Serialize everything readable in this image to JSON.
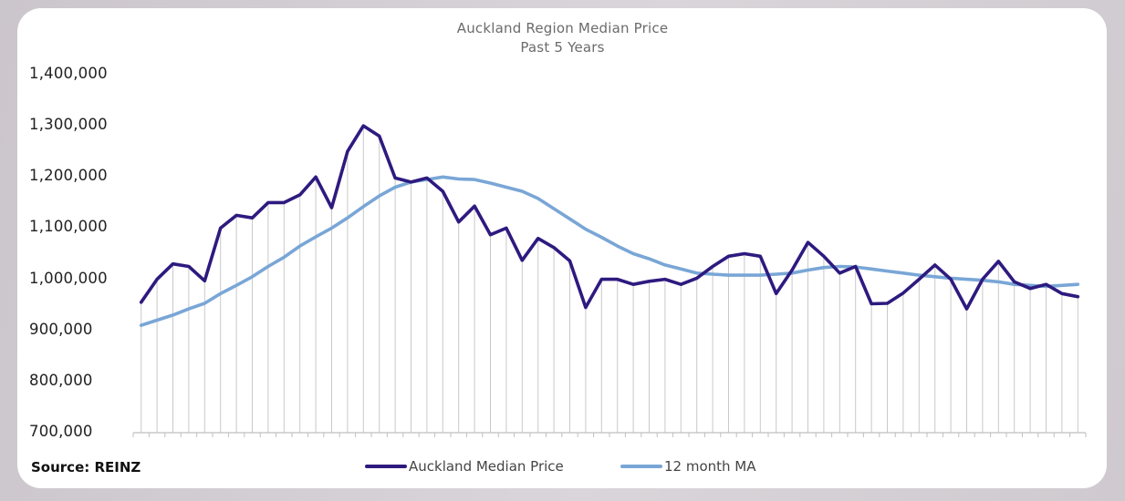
{
  "chart_data": {
    "type": "line",
    "title": "Auckland Region Median Price",
    "subtitle": "Past 5 Years",
    "xlabel": "",
    "ylabel": "",
    "ylim": [
      700000,
      1400000
    ],
    "ytick_values": [
      700000,
      800000,
      900000,
      1000000,
      1100000,
      1200000,
      1300000,
      1400000
    ],
    "ytick_labels": [
      "700,000",
      "800,000",
      "900,000",
      "1,000,000",
      "1,100,000",
      "1,200,000",
      "1,300,000",
      "1,400,000"
    ],
    "x_count": 60,
    "vertical_gridlines": true,
    "legend_position": "bottom",
    "series": [
      {
        "name": "Auckland Median Price",
        "color": "#2e1a7f",
        "values": [
          955000,
          1000000,
          1030000,
          1025000,
          997000,
          1100000,
          1125000,
          1120000,
          1150000,
          1150000,
          1165000,
          1200000,
          1140000,
          1250000,
          1300000,
          1280000,
          1198000,
          1190000,
          1198000,
          1172000,
          1112000,
          1143000,
          1087000,
          1100000,
          1037000,
          1080000,
          1062000,
          1036000,
          945000,
          1000000,
          1000000,
          990000,
          996000,
          1000000,
          990000,
          1002000,
          1025000,
          1045000,
          1050000,
          1045000,
          972000,
          1018000,
          1072000,
          1045000,
          1012000,
          1025000,
          952000,
          953000,
          973000,
          1000000,
          1028000,
          1000000,
          942000,
          1000000,
          1035000,
          995000,
          982000,
          990000,
          972000,
          966000
        ]
      },
      {
        "name": "12 month MA",
        "color": "#79a6d6",
        "values": [
          910000,
          920000,
          930000,
          942000,
          953000,
          972000,
          988000,
          1005000,
          1025000,
          1043000,
          1065000,
          1083000,
          1100000,
          1120000,
          1142000,
          1163000,
          1180000,
          1190000,
          1195000,
          1200000,
          1196000,
          1195000,
          1188000,
          1180000,
          1172000,
          1158000,
          1138000,
          1118000,
          1098000,
          1082000,
          1065000,
          1050000,
          1040000,
          1028000,
          1020000,
          1012000,
          1010000,
          1008000,
          1008000,
          1008000,
          1010000,
          1012000,
          1018000,
          1023000,
          1025000,
          1024000,
          1020000,
          1016000,
          1012000,
          1008000,
          1005000,
          1002000,
          1000000,
          998000,
          995000,
          990000,
          988000,
          986000,
          988000,
          990000
        ]
      }
    ]
  },
  "source": "Source: REINZ"
}
